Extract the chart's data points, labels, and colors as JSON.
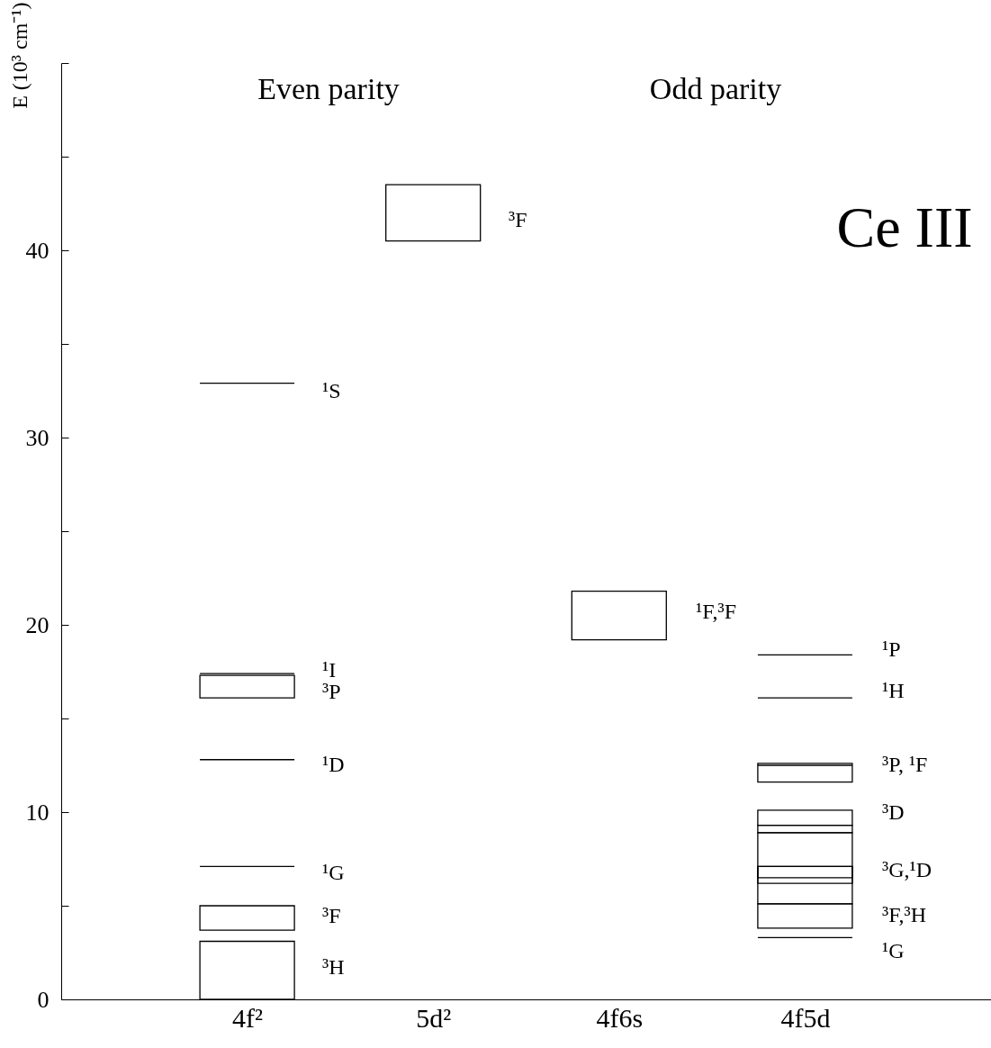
{
  "chart_data": {
    "type": "bar",
    "ylabel": "E (10³ cm⁻¹)",
    "categories": [
      "4f²",
      "5d²",
      "4f6s",
      "4f5d"
    ],
    "ylim": [
      0,
      50
    ],
    "yticks": [
      0,
      {
        "value": 5,
        "label": null
      },
      10,
      {
        "value": 15,
        "label": null
      },
      20,
      {
        "value": 25,
        "label": null
      },
      30,
      {
        "value": 35,
        "label": null
      },
      40,
      {
        "value": 45,
        "label": null
      },
      {
        "value": 50,
        "label": null
      }
    ],
    "series": [
      {
        "color": "#000000",
        "base": [
          0,
          40.5,
          19.2,
          3.8
        ],
        "values": [
          3.1,
          3.0,
          2.6,
          1.3
        ]
      },
      {
        "color": "#000000",
        "base": [
          3.7,
          null,
          null,
          5.1
        ],
        "values": [
          1.3,
          null,
          null,
          3.8
        ]
      },
      {
        "color": "#000000",
        "base": [
          7.1,
          null,
          null,
          6.2
        ],
        "values": [
          0,
          null,
          null,
          0.9
        ]
      },
      {
        "color": "#000000",
        "base": [
          12.8,
          null,
          null,
          6.5
        ],
        "values": [
          0,
          null,
          null,
          0.6
        ]
      },
      {
        "color": "#000000",
        "base": [
          16.1,
          null,
          null,
          8.9
        ],
        "values": [
          1.2,
          null,
          null,
          0.4
        ]
      },
      {
        "color": "#000000",
        "base": [
          17.4,
          null,
          null,
          9.3
        ],
        "values": [
          0,
          null,
          null,
          0.8
        ]
      },
      {
        "color": "#000000",
        "base": [
          32.9,
          null,
          null,
          11.6
        ],
        "values": [
          0,
          null,
          null,
          1.0
        ]
      },
      {
        "color": "#000000",
        "base": [
          null,
          null,
          null,
          12.5
        ],
        "values": [
          null,
          null,
          null,
          0
        ]
      },
      {
        "color": "#000000",
        "base": [
          null,
          null,
          null,
          16.1
        ],
        "values": [
          null,
          null,
          null,
          0
        ]
      },
      {
        "color": "#000000",
        "base": [
          null,
          null,
          null,
          18.4
        ],
        "values": [
          null,
          null,
          null,
          0
        ]
      },
      {
        "color": "#000000",
        "base": [
          null,
          null,
          null,
          3.3
        ],
        "values": [
          null,
          null,
          null,
          0
        ]
      }
    ],
    "annotations": [
      "Even parity",
      "Odd parity",
      "Ce III",
      "³H",
      "³F",
      "¹G",
      "¹D",
      "³P",
      "¹I",
      "¹S",
      "³F",
      "¹F,³F",
      "¹P",
      "¹H",
      "³P, ¹F",
      "³D",
      "³G,¹D",
      "³F,³H",
      "¹G"
    ]
  }
}
